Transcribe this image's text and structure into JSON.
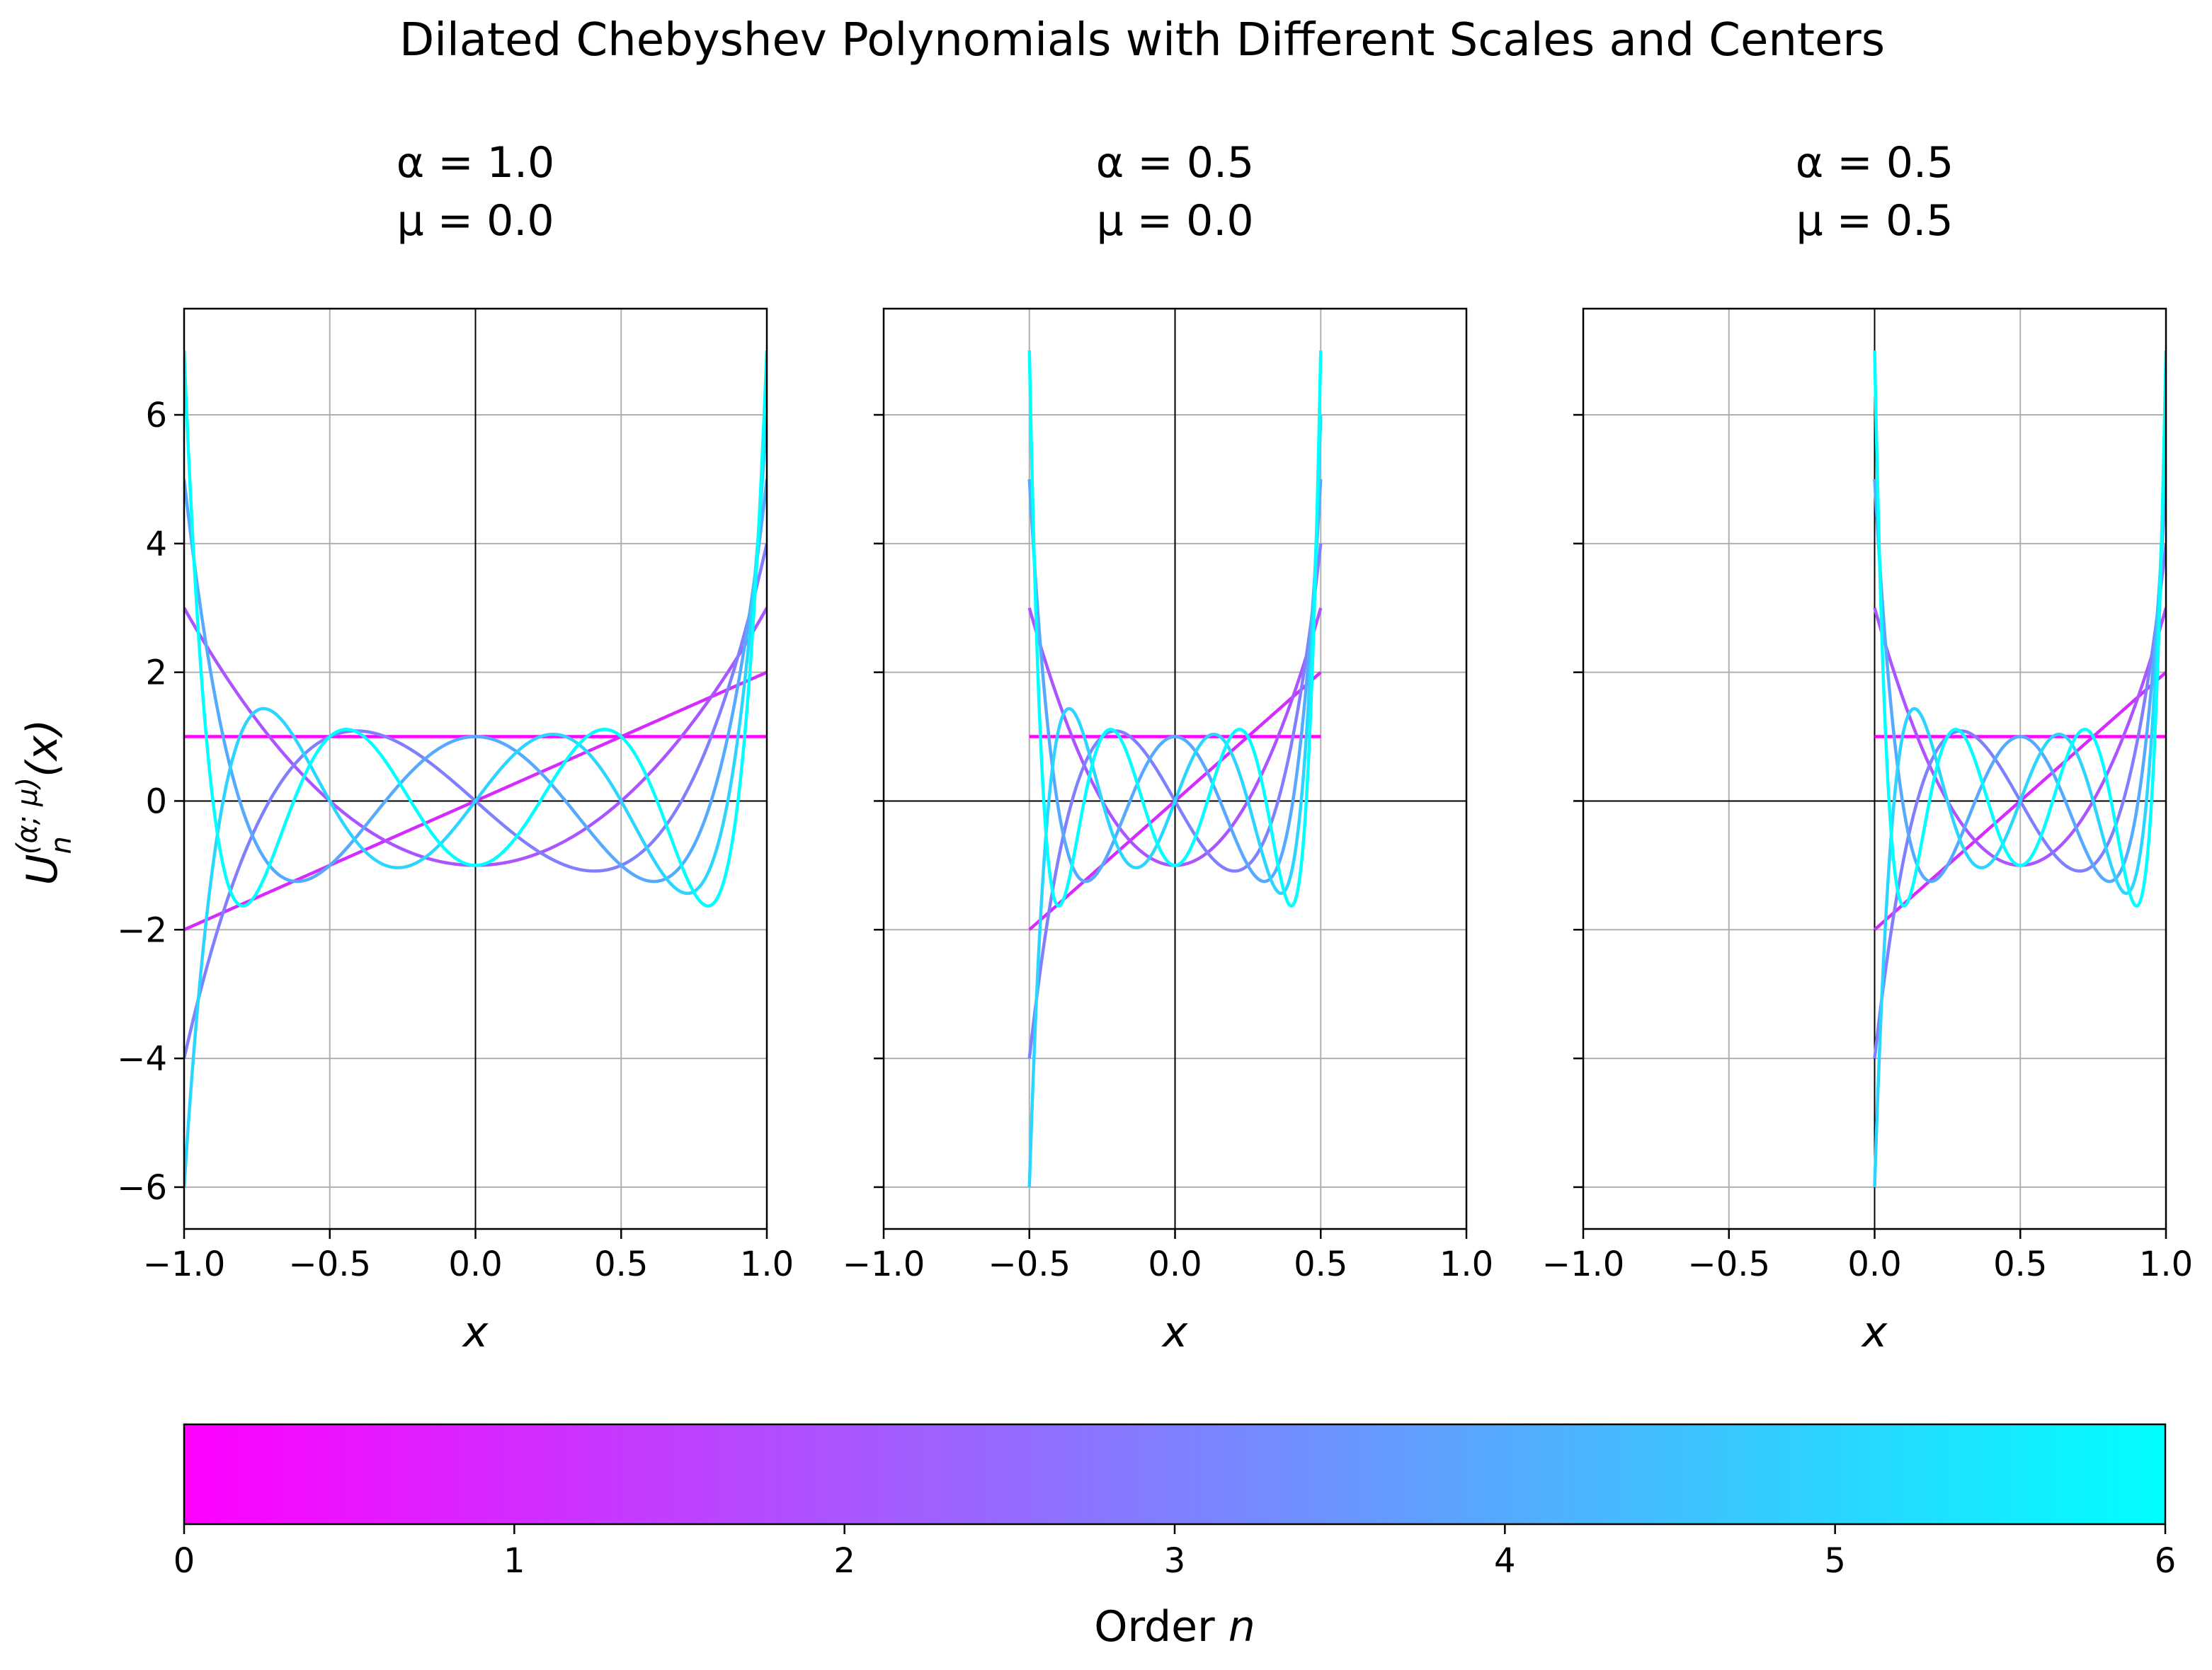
{
  "chart_data": {
    "type": "line",
    "title": "Dilated Chebyshev Polynomials with Different Scales and Centers",
    "ylabel": {
      "base": "U",
      "sub": "n",
      "sup": "(α; μ)",
      "arg": "(x)"
    },
    "xlim": [
      -1.0,
      1.0
    ],
    "ylim": [
      -6.65,
      7.65
    ],
    "xticks": [
      -1.0,
      -0.5,
      0.0,
      0.5,
      1.0
    ],
    "xtick_labels": [
      "−1.0",
      "−0.5",
      "0.0",
      "0.5",
      "1.0"
    ],
    "yticks": [
      -6,
      -4,
      -2,
      0,
      2,
      4,
      6
    ],
    "ytick_labels": [
      "−6",
      "−4",
      "−2",
      "0",
      "2",
      "4",
      "6"
    ],
    "grid": true,
    "orders": [
      0,
      1,
      2,
      3,
      4,
      5,
      6
    ],
    "series_definition": "U_n((x - mu)/alpha), second-kind Chebyshev, x in [mu - alpha, mu + alpha]",
    "panels": [
      {
        "alpha": 1.0,
        "mu": 0.0,
        "alpha_label": "α = 1.0",
        "mu_label": "μ = 0.0",
        "xlabel": "x"
      },
      {
        "alpha": 0.5,
        "mu": 0.0,
        "alpha_label": "α = 0.5",
        "mu_label": "μ = 0.0",
        "xlabel": "x"
      },
      {
        "alpha": 0.5,
        "mu": 0.5,
        "alpha_label": "α = 0.5",
        "mu_label": "μ = 0.5",
        "xlabel": "x"
      }
    ],
    "colormap": {
      "name": "cool",
      "start": "#ff00ff",
      "end": "#00ffff"
    },
    "colorbar": {
      "label_prefix": "Order ",
      "label_var": "n",
      "range": [
        0,
        6
      ],
      "ticks": [
        0,
        1,
        2,
        3,
        4,
        5,
        6
      ],
      "tick_labels": [
        "0",
        "1",
        "2",
        "3",
        "4",
        "5",
        "6"
      ]
    }
  }
}
